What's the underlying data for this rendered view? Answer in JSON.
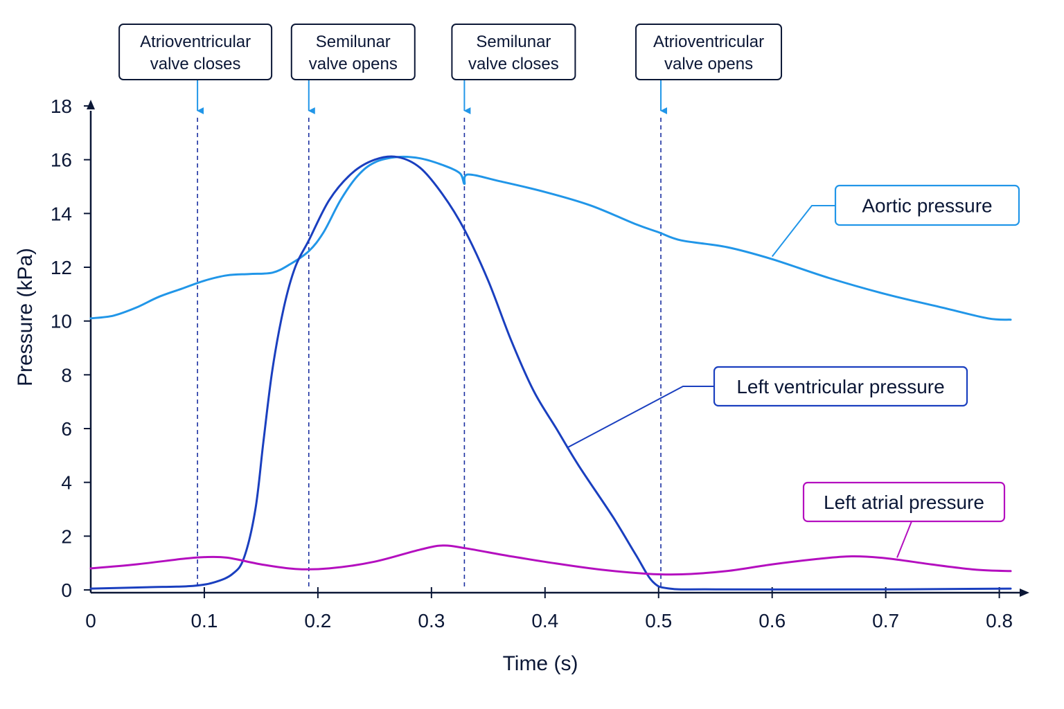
{
  "chart_data": {
    "type": "line",
    "xlabel": "Time (s)",
    "ylabel": "Pressure (kPa)",
    "xlim": [
      0,
      0.82
    ],
    "ylim": [
      0,
      18
    ],
    "x_ticks": [
      "0",
      "0.1",
      "0.2",
      "0.3",
      "0.4",
      "0.5",
      "0.6",
      "0.7",
      "0.8"
    ],
    "y_ticks": [
      "0",
      "2",
      "4",
      "6",
      "8",
      "10",
      "12",
      "14",
      "16",
      "18"
    ],
    "grid": false,
    "events": [
      {
        "label_line1": "Atrioventricular",
        "label_line2": "valve closes",
        "x": 0.094
      },
      {
        "label_line1": "Semilunar",
        "label_line2": "valve opens",
        "x": 0.192
      },
      {
        "label_line1": "Semilunar",
        "label_line2": "valve closes",
        "x": 0.329
      },
      {
        "label_line1": "Atrioventricular",
        "label_line2": "valve opens",
        "x": 0.502
      }
    ],
    "series": [
      {
        "name": "Aortic pressure",
        "color": "#2196e8",
        "points": [
          [
            0,
            10.1
          ],
          [
            0.02,
            10.2
          ],
          [
            0.04,
            10.5
          ],
          [
            0.06,
            10.9
          ],
          [
            0.08,
            11.2
          ],
          [
            0.1,
            11.5
          ],
          [
            0.12,
            11.7
          ],
          [
            0.14,
            11.75
          ],
          [
            0.16,
            11.8
          ],
          [
            0.175,
            12.1
          ],
          [
            0.192,
            12.6
          ],
          [
            0.205,
            13.3
          ],
          [
            0.22,
            14.5
          ],
          [
            0.235,
            15.4
          ],
          [
            0.25,
            15.9
          ],
          [
            0.27,
            16.1
          ],
          [
            0.29,
            16.05
          ],
          [
            0.31,
            15.8
          ],
          [
            0.325,
            15.5
          ],
          [
            0.329,
            15.1
          ],
          [
            0.332,
            15.45
          ],
          [
            0.36,
            15.2
          ],
          [
            0.4,
            14.8
          ],
          [
            0.44,
            14.3
          ],
          [
            0.48,
            13.6
          ],
          [
            0.5,
            13.3
          ],
          [
            0.52,
            13.0
          ],
          [
            0.56,
            12.75
          ],
          [
            0.6,
            12.3
          ],
          [
            0.65,
            11.6
          ],
          [
            0.7,
            11.0
          ],
          [
            0.75,
            10.5
          ],
          [
            0.79,
            10.1
          ],
          [
            0.81,
            10.05
          ]
        ]
      },
      {
        "name": "Left ventricular pressure",
        "color": "#1a3fbf",
        "points": [
          [
            0,
            0.05
          ],
          [
            0.05,
            0.1
          ],
          [
            0.09,
            0.15
          ],
          [
            0.11,
            0.3
          ],
          [
            0.125,
            0.6
          ],
          [
            0.135,
            1.2
          ],
          [
            0.145,
            3.0
          ],
          [
            0.152,
            5.5
          ],
          [
            0.16,
            8.2
          ],
          [
            0.17,
            10.5
          ],
          [
            0.18,
            12.0
          ],
          [
            0.192,
            13.0
          ],
          [
            0.21,
            14.5
          ],
          [
            0.23,
            15.5
          ],
          [
            0.25,
            16.0
          ],
          [
            0.27,
            16.1
          ],
          [
            0.29,
            15.7
          ],
          [
            0.31,
            14.7
          ],
          [
            0.329,
            13.4
          ],
          [
            0.35,
            11.5
          ],
          [
            0.37,
            9.3
          ],
          [
            0.39,
            7.4
          ],
          [
            0.41,
            6.0
          ],
          [
            0.43,
            4.6
          ],
          [
            0.46,
            2.7
          ],
          [
            0.48,
            1.3
          ],
          [
            0.495,
            0.3
          ],
          [
            0.51,
            0.05
          ],
          [
            0.55,
            0.02
          ],
          [
            0.7,
            0.02
          ],
          [
            0.81,
            0.05
          ]
        ]
      },
      {
        "name": "Left atrial pressure",
        "color": "#b40fbf",
        "points": [
          [
            0,
            0.8
          ],
          [
            0.04,
            0.95
          ],
          [
            0.08,
            1.15
          ],
          [
            0.1,
            1.22
          ],
          [
            0.12,
            1.2
          ],
          [
            0.15,
            0.95
          ],
          [
            0.18,
            0.78
          ],
          [
            0.21,
            0.8
          ],
          [
            0.25,
            1.05
          ],
          [
            0.29,
            1.5
          ],
          [
            0.31,
            1.65
          ],
          [
            0.33,
            1.55
          ],
          [
            0.37,
            1.25
          ],
          [
            0.41,
            0.98
          ],
          [
            0.45,
            0.75
          ],
          [
            0.49,
            0.6
          ],
          [
            0.52,
            0.58
          ],
          [
            0.56,
            0.7
          ],
          [
            0.6,
            0.95
          ],
          [
            0.64,
            1.15
          ],
          [
            0.67,
            1.25
          ],
          [
            0.7,
            1.18
          ],
          [
            0.74,
            0.95
          ],
          [
            0.78,
            0.75
          ],
          [
            0.81,
            0.7
          ]
        ]
      }
    ],
    "legend": [
      {
        "label": "Aortic pressure",
        "series": 0,
        "color": "#2196e8",
        "anchor_x": 0.6,
        "anchor_y": 12.4
      },
      {
        "label": "Left ventricular pressure",
        "series": 1,
        "color": "#1a3fbf",
        "anchor_x": 0.42,
        "anchor_y": 5.3
      },
      {
        "label": "Left atrial pressure",
        "series": 2,
        "color": "#b40fbf",
        "anchor_x": 0.71,
        "anchor_y": 1.2
      }
    ]
  }
}
